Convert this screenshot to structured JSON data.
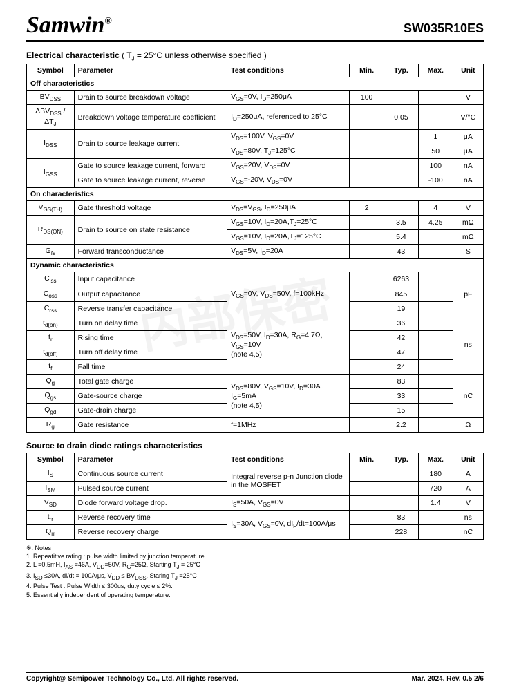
{
  "header": {
    "logo": "Samwin",
    "reg": "®",
    "part": "SW035R10ES"
  },
  "section1": {
    "title": "Electrical characteristic",
    "cond": " ( T<sub>J</sub> = 25°C unless otherwise specified )",
    "headers": [
      "Symbol",
      "Parameter",
      "Test conditions",
      "Min.",
      "Typ.",
      "Max.",
      "Unit"
    ],
    "sub_off": "Off characteristics",
    "rows_off": [
      {
        "sym": "BV<sub>DSS</sub>",
        "param": "Drain to source breakdown voltage",
        "cond": "V<sub>GS</sub>=0V, I<sub>D</sub>=250μA",
        "min": "100",
        "typ": "",
        "max": "",
        "unit": "V"
      },
      {
        "sym": "ΔBV<sub>DSS</sub> / ΔT<sub>J</sub>",
        "param": "Breakdown voltage temperature coefficient",
        "cond": "I<sub>D</sub>=250μA, referenced to 25°C",
        "min": "",
        "typ": "0.05",
        "max": "",
        "unit": "V/°C"
      },
      {
        "sym": "I<sub>DSS</sub>",
        "param": "Drain to source leakage current",
        "rowspan": 2,
        "cond": "V<sub>DS</sub>=100V, V<sub>GS</sub>=0V",
        "min": "",
        "typ": "",
        "max": "1",
        "unit": "μA"
      },
      {
        "cond": "V<sub>DS</sub>=80V, T<sub>J</sub>=125°C",
        "min": "",
        "typ": "",
        "max": "50",
        "unit": "μA"
      },
      {
        "sym": "I<sub>GSS</sub>",
        "rowspan": 2,
        "param": "Gate to source leakage current, forward",
        "cond": "V<sub>GS</sub>=20V, V<sub>DS</sub>=0V",
        "min": "",
        "typ": "",
        "max": "100",
        "unit": "nA"
      },
      {
        "param": "Gate to source leakage current, reverse",
        "cond": "V<sub>GS</sub>=-20V, V<sub>DS</sub>=0V",
        "min": "",
        "typ": "",
        "max": "-100",
        "unit": "nA"
      }
    ],
    "sub_on": "On characteristics",
    "rows_on": [
      {
        "sym": "V<sub>GS(TH)</sub>",
        "param": "Gate threshold voltage",
        "cond": "V<sub>DS</sub>=V<sub>GS</sub>, I<sub>D</sub>=250μA",
        "min": "2",
        "typ": "",
        "max": "4",
        "unit": "V"
      },
      {
        "sym": "R<sub>DS(ON)</sub>",
        "param": "Drain to source on state resistance",
        "rowspan": 2,
        "cond": "V<sub>GS</sub>=10V, I<sub>D</sub>=20A,T<sub>J</sub>=25°C",
        "min": "",
        "typ": "3.5",
        "max": "4.25",
        "unit": "mΩ"
      },
      {
        "cond": "V<sub>GS</sub>=10V, I<sub>D</sub>=20A,T<sub>J</sub>=125°C",
        "min": "",
        "typ": "5.4",
        "max": "",
        "unit": "mΩ"
      },
      {
        "sym": "G<sub>fs</sub>",
        "param": "Forward transconductance",
        "cond": "V<sub>DS</sub>=5V, I<sub>D</sub>=20A",
        "min": "",
        "typ": "43",
        "max": "",
        "unit": "S"
      }
    ],
    "sub_dyn": "Dynamic characteristics",
    "rows_dyn": [
      {
        "sym": "C<sub>iss</sub>",
        "param": "Input capacitance",
        "cond": "V<sub>GS</sub>=0V, V<sub>DS</sub>=50V, f=100kHz",
        "condrs": 3,
        "min": "",
        "typ": "6263",
        "max": "",
        "unit": "pF",
        "urs": 3
      },
      {
        "sym": "C<sub>oss</sub>",
        "param": "Output capacitance",
        "min": "",
        "typ": "845",
        "max": ""
      },
      {
        "sym": "C<sub>rss</sub>",
        "param": "Reverse transfer capacitance",
        "min": "",
        "typ": "19",
        "max": ""
      },
      {
        "sym": "t<sub>d(on)</sub>",
        "param": "Turn on delay time",
        "cond": "V<sub>DS</sub>=50V, I<sub>D</sub>=30A, R<sub>G</sub>=4.7Ω, V<sub>GS</sub>=10V<br>(note 4,5)",
        "condrs": 4,
        "min": "",
        "typ": "36",
        "max": "",
        "unit": "ns",
        "urs": 4
      },
      {
        "sym": "t<sub>r</sub>",
        "param": "Rising time",
        "min": "",
        "typ": "42",
        "max": ""
      },
      {
        "sym": "t<sub>d(off)</sub>",
        "param": "Turn off delay time",
        "min": "",
        "typ": "47",
        "max": ""
      },
      {
        "sym": "t<sub>f</sub>",
        "param": "Fall time",
        "min": "",
        "typ": "24",
        "max": ""
      },
      {
        "sym": "Q<sub>g</sub>",
        "param": "Total gate charge",
        "cond": "V<sub>DS</sub>=80V, V<sub>GS</sub>=10V, I<sub>D</sub>=30A , I<sub>G</sub>=5mA<br>(note 4,5)",
        "condrs": 3,
        "min": "",
        "typ": "83",
        "max": "",
        "unit": "nC",
        "urs": 3
      },
      {
        "sym": "Q<sub>gs</sub>",
        "param": "Gate-source charge",
        "min": "",
        "typ": "33",
        "max": ""
      },
      {
        "sym": "Q<sub>gd</sub>",
        "param": "Gate-drain charge",
        "min": "",
        "typ": "15",
        "max": ""
      },
      {
        "sym": "R<sub>g</sub>",
        "param": "Gate resistance",
        "cond": "f=1MHz",
        "min": "",
        "typ": "2.2",
        "max": "",
        "unit": "Ω"
      }
    ]
  },
  "section2": {
    "title": "Source to drain diode ratings characteristics",
    "headers": [
      "Symbol",
      "Parameter",
      "Test conditions",
      "Min.",
      "Typ.",
      "Max.",
      "Unit"
    ],
    "rows": [
      {
        "sym": "I<sub>S</sub>",
        "param": "Continuous source current",
        "cond": "Integral reverse p-n Junction diode in the MOSFET",
        "condrs": 2,
        "min": "",
        "typ": "",
        "max": "180",
        "unit": "A"
      },
      {
        "sym": "I<sub>SM</sub>",
        "param": "Pulsed source current",
        "min": "",
        "typ": "",
        "max": "720",
        "unit": "A"
      },
      {
        "sym": "V<sub>SD</sub>",
        "param": "Diode forward voltage drop.",
        "cond": "I<sub>S</sub>=50A, V<sub>GS</sub>=0V",
        "min": "",
        "typ": "",
        "max": "1.4",
        "unit": "V"
      },
      {
        "sym": "t<sub>rr</sub>",
        "param": "Reverse recovery time",
        "cond": "I<sub>S</sub>=30A, V<sub>GS</sub>=0V, dI<sub>F</sub>/dt=100A/μs",
        "condrs": 2,
        "min": "",
        "typ": "83",
        "max": "",
        "unit": "ns"
      },
      {
        "sym": "Q<sub>rr</sub>",
        "param": "Reverse recovery charge",
        "min": "",
        "typ": "228",
        "max": "",
        "unit": "nC"
      }
    ]
  },
  "notes": {
    "title": "※. Notes",
    "items": [
      "1.    Repeatitive rating : pulse width limited by junction temperature.",
      "2.    L =0.5mH, I<sub>AS</sub> =46A, V<sub>DD</sub>=50V, R<sub>G</sub>=25Ω, Starting T<sub>J</sub> = 25°C",
      "3.    I<sub>SD</sub> ≤30A, di/dt = 100A/μs, V<sub>DD</sub> ≤ BV<sub>DSS</sub>, Staring T<sub>J</sub> =25°C",
      "4.    Pulse Test : Pulse Width ≤ 300us, duty cycle ≤ 2%.",
      "5.    Essentially independent of operating temperature."
    ]
  },
  "footer": {
    "left": "Copyright@ Semipower Technology Co., Ltd. All rights reserved.",
    "right": "Mar. 2024. Rev. 0.5   2/6"
  }
}
